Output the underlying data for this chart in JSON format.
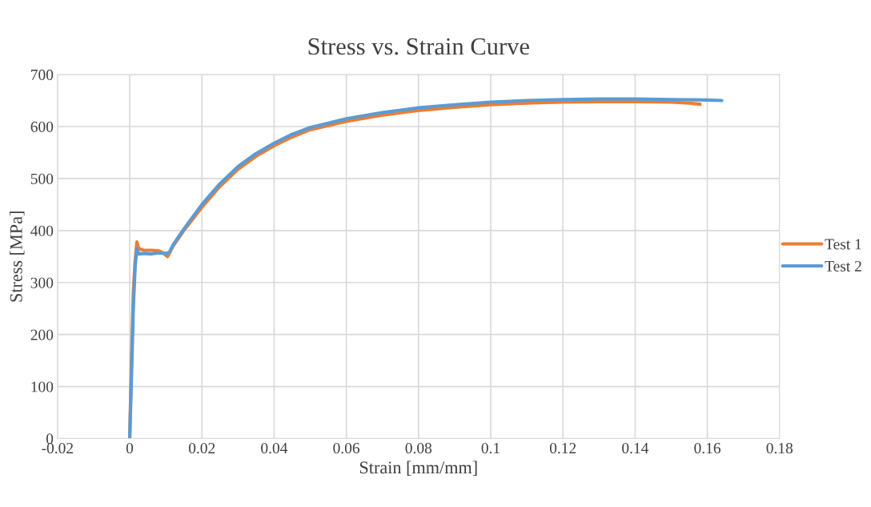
{
  "chart_data": {
    "type": "line",
    "title": "Stress vs. Strain Curve",
    "xlabel": "Strain [mm/mm]",
    "ylabel": "Stress [MPa]",
    "xlim": [
      -0.02,
      0.18
    ],
    "xticks": [
      -0.02,
      0,
      0.02,
      0.04,
      0.06,
      0.08,
      0.1,
      0.12,
      0.14,
      0.16,
      0.18
    ],
    "ylim": [
      0,
      700
    ],
    "yticks": [
      0,
      100,
      200,
      300,
      400,
      500,
      600,
      700
    ],
    "grid": true,
    "legend": "right",
    "marker": "none",
    "line_style": "solid",
    "series": [
      {
        "name": "Test 1",
        "color": "#ed7d31",
        "x": [
          0,
          0.0005,
          0.001,
          0.0015,
          0.002,
          0.0025,
          0.004,
          0.006,
          0.008,
          0.009,
          0.0105,
          0.012,
          0.015,
          0.02,
          0.025,
          0.03,
          0.035,
          0.04,
          0.045,
          0.05,
          0.06,
          0.07,
          0.08,
          0.09,
          0.1,
          0.11,
          0.12,
          0.13,
          0.14,
          0.15,
          0.155,
          0.158
        ],
        "values": [
          0,
          150,
          280,
          340,
          378,
          365,
          362,
          362,
          361,
          358,
          350,
          370,
          400,
          445,
          485,
          518,
          543,
          563,
          580,
          594,
          610,
          622,
          631,
          637,
          642,
          645,
          647,
          648,
          648,
          647,
          645,
          643
        ]
      },
      {
        "name": "Test 2",
        "color": "#5b9bd5",
        "x": [
          0,
          0.0005,
          0.001,
          0.0015,
          0.002,
          0.0025,
          0.004,
          0.006,
          0.008,
          0.01,
          0.011,
          0.012,
          0.015,
          0.02,
          0.025,
          0.03,
          0.035,
          0.04,
          0.045,
          0.05,
          0.06,
          0.07,
          0.08,
          0.09,
          0.1,
          0.11,
          0.12,
          0.13,
          0.14,
          0.15,
          0.16,
          0.164
        ],
        "values": [
          0,
          120,
          250,
          330,
          365,
          355,
          356,
          355,
          357,
          356,
          358,
          372,
          403,
          450,
          490,
          523,
          548,
          568,
          585,
          598,
          615,
          627,
          636,
          642,
          647,
          650,
          652,
          653,
          653,
          652,
          651,
          650
        ]
      }
    ]
  }
}
